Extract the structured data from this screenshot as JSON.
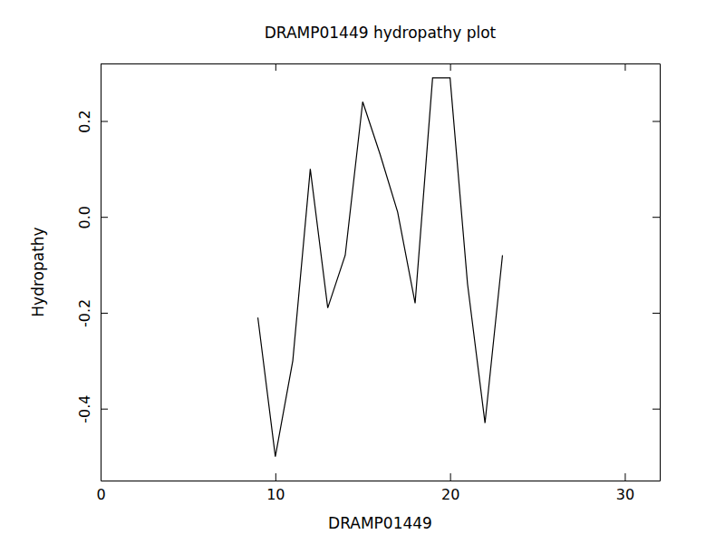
{
  "chart_data": {
    "type": "line",
    "title": "DRAMP01449 hydropathy plot",
    "x_label": "DRAMP01449",
    "y_label": "Hydropathy",
    "x": [
      9,
      10,
      11,
      12,
      13,
      14,
      15,
      16,
      17,
      18,
      19,
      20,
      21,
      22,
      23
    ],
    "values": [
      -0.21,
      -0.5,
      -0.3,
      0.1,
      -0.19,
      -0.08,
      0.24,
      0.13,
      0.01,
      -0.18,
      0.29,
      0.29,
      -0.14,
      -0.43,
      -0.08
    ],
    "color": "#000000",
    "xlim": [
      0,
      32
    ],
    "xticks": [
      0,
      10,
      20,
      30
    ],
    "ylim": [
      -0.55,
      0.32
    ],
    "yticks": [
      -0.4,
      -0.2,
      {
        "value": 0,
        "label": "0.0"
      },
      0.2
    ],
    "grid": false
  }
}
